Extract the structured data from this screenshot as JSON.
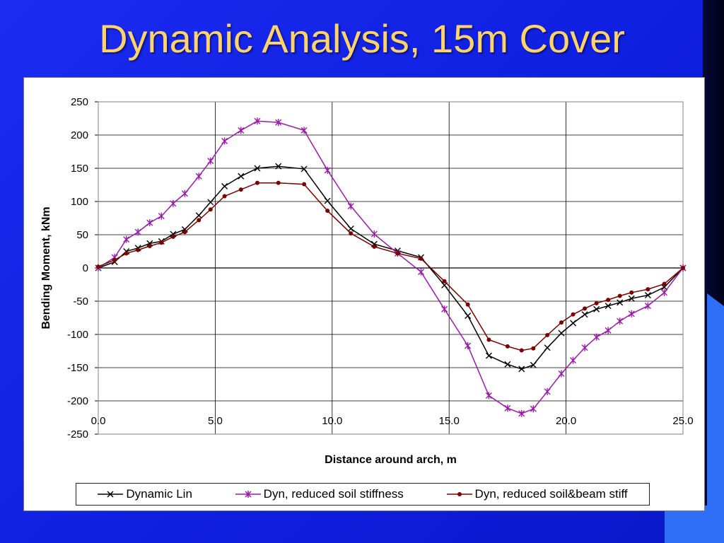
{
  "slide": {
    "title": "Dynamic Analysis, 15m Cover"
  },
  "colors": {
    "title": "#ffd36b",
    "dynamic_lin": "#000000",
    "reduced_soil": "#9a1aa8",
    "reduced_soil_beam": "#7a0000"
  },
  "chart_data": {
    "type": "line",
    "title": "",
    "xlabel": "Distance around arch, m",
    "ylabel": "Bending Moment, kNm",
    "xlim": [
      0,
      25
    ],
    "ylim": [
      -250,
      250
    ],
    "x_ticks": [
      "0.0",
      "5.0",
      "10.0",
      "15.0",
      "20.0",
      "25.0"
    ],
    "y_ticks": [
      "250",
      "200",
      "150",
      "100",
      "50",
      "0",
      "-50",
      "-100",
      "-150",
      "-200",
      "-250"
    ],
    "grid": "horizontal and vertical",
    "legend_position": "bottom",
    "series": [
      {
        "name": "Dynamic Lin",
        "marker": "x",
        "color": "#000000",
        "x": [
          0,
          0.7,
          1.2,
          1.7,
          2.2,
          2.7,
          3.2,
          3.7,
          4.3,
          4.8,
          5.4,
          6.1,
          6.8,
          7.7,
          8.8,
          9.8,
          10.8,
          11.8,
          12.8,
          13.8,
          14.8,
          15.8,
          16.7,
          17.5,
          18.1,
          18.6,
          19.2,
          19.8,
          20.3,
          20.8,
          21.3,
          21.8,
          22.3,
          22.8,
          23.5,
          24.2,
          25.0
        ],
        "y": [
          0,
          9,
          25,
          30,
          37,
          40,
          51,
          58,
          79,
          99,
          123,
          138,
          150,
          153,
          149,
          101,
          59,
          36,
          26,
          16,
          -26,
          -72,
          -132,
          -145,
          -152,
          -146,
          -120,
          -98,
          -83,
          -70,
          -62,
          -57,
          -52,
          -46,
          -41,
          -29,
          0
        ]
      },
      {
        "name": "Dyn, reduced soil stiffness",
        "marker": "asterisk",
        "color": "#9a1aa8",
        "x": [
          0,
          0.7,
          1.2,
          1.7,
          2.2,
          2.7,
          3.2,
          3.7,
          4.3,
          4.8,
          5.4,
          6.1,
          6.8,
          7.7,
          8.8,
          9.8,
          10.8,
          11.8,
          12.8,
          13.8,
          14.8,
          15.8,
          16.7,
          17.5,
          18.1,
          18.6,
          19.2,
          19.8,
          20.3,
          20.8,
          21.3,
          21.8,
          22.3,
          22.8,
          23.5,
          24.2,
          25.0
        ],
        "y": [
          0,
          16,
          43,
          54,
          68,
          78,
          97,
          112,
          138,
          161,
          191,
          207,
          221,
          219,
          207,
          147,
          93,
          51,
          22,
          -6,
          -62,
          -117,
          -192,
          -211,
          -219,
          -212,
          -186,
          -159,
          -139,
          -120,
          -104,
          -94,
          -80,
          -69,
          -57,
          -37,
          0
        ]
      },
      {
        "name": "Dyn, reduced soil&beam stiff",
        "marker": "dot",
        "color": "#7a0000",
        "x": [
          0,
          0.7,
          1.2,
          1.7,
          2.2,
          2.7,
          3.2,
          3.7,
          4.3,
          4.8,
          5.4,
          6.1,
          6.8,
          7.7,
          8.8,
          9.8,
          10.8,
          11.8,
          12.8,
          13.8,
          14.8,
          15.8,
          16.7,
          17.5,
          18.1,
          18.6,
          19.2,
          19.8,
          20.3,
          20.8,
          21.3,
          21.8,
          22.3,
          22.8,
          23.5,
          24.2,
          25.0
        ],
        "y": [
          2,
          12,
          22,
          27,
          33,
          38,
          47,
          54,
          72,
          88,
          108,
          118,
          128,
          128,
          126,
          86,
          52,
          32,
          22,
          14,
          -20,
          -55,
          -108,
          -118,
          -124,
          -121,
          -101,
          -82,
          -70,
          -61,
          -53,
          -48,
          -42,
          -37,
          -32,
          -24,
          0
        ]
      }
    ]
  }
}
